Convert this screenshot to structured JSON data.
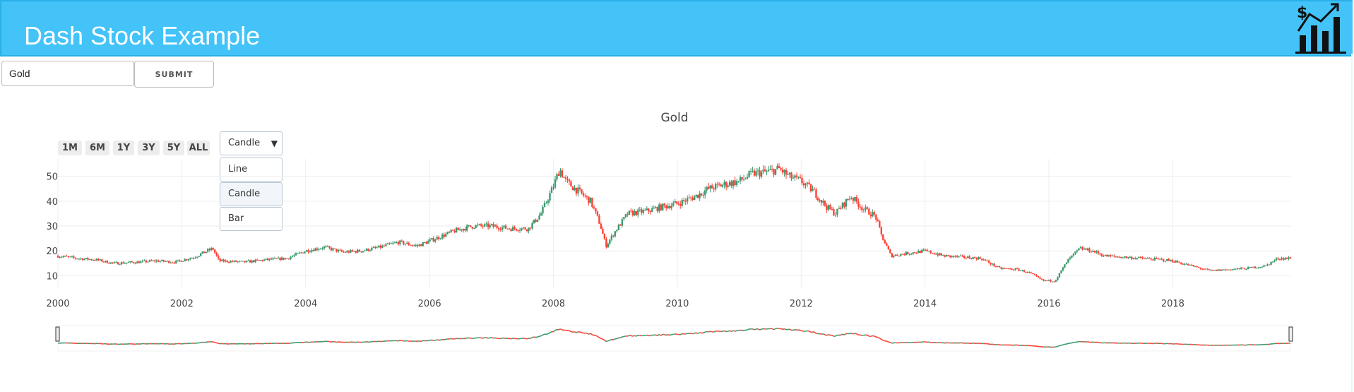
{
  "header": {
    "title": "Dash Stock Example",
    "logo_text": "$"
  },
  "controls": {
    "ticker_value": "Gold",
    "submit_label": "SUBMIT"
  },
  "range_buttons": [
    "1M",
    "6M",
    "1Y",
    "3Y",
    "5Y",
    "ALL"
  ],
  "chart_type_dropdown": {
    "selected": "Candle",
    "options": [
      "Line",
      "Candle",
      "Bar"
    ]
  },
  "colors": {
    "header_bg": "#43c3f8",
    "increasing": "#3d9970",
    "decreasing": "#ff4136",
    "grid": "#eeeeee"
  },
  "chart_data": {
    "type": "candlestick",
    "title": "Gold",
    "xlabel": "",
    "ylabel": "",
    "x_range": [
      2000.0,
      2019.9
    ],
    "ylim": [
      5,
      57
    ],
    "x_ticks": [
      "2000",
      "2002",
      "2004",
      "2006",
      "2008",
      "2010",
      "2012",
      "2014",
      "2016",
      "2018"
    ],
    "y_ticks": [
      10,
      20,
      30,
      40,
      50
    ],
    "grid": true,
    "rangeslider": true,
    "series": [
      {
        "name": "Gold",
        "approx_close_path": {
          "x": [
            2000.0,
            2000.3,
            2000.6,
            2000.9,
            2001.3,
            2001.6,
            2001.9,
            2002.2,
            2002.5,
            2002.6,
            2003.0,
            2003.4,
            2003.7,
            2004.0,
            2004.3,
            2004.6,
            2004.9,
            2005.2,
            2005.5,
            2005.8,
            2006.1,
            2006.4,
            2006.7,
            2007.0,
            2007.3,
            2007.6,
            2007.8,
            2008.0,
            2008.1,
            2008.2,
            2008.4,
            2008.6,
            2008.75,
            2008.85,
            2009.0,
            2009.2,
            2009.5,
            2009.8,
            2010.0,
            2010.3,
            2010.5,
            2010.8,
            2011.0,
            2011.2,
            2011.5,
            2011.65,
            2011.8,
            2012.0,
            2012.2,
            2012.4,
            2012.55,
            2012.8,
            2013.0,
            2013.2,
            2013.3,
            2013.45,
            2013.7,
            2014.0,
            2014.3,
            2014.6,
            2014.9,
            2015.2,
            2015.5,
            2015.7,
            2015.9,
            2016.1,
            2016.3,
            2016.5,
            2016.7,
            2016.9,
            2017.2,
            2017.5,
            2017.8,
            2018.0,
            2018.3,
            2018.6,
            2018.9,
            2019.2,
            2019.5,
            2019.7,
            2019.9
          ],
          "close": [
            18,
            17,
            16.5,
            15,
            15.5,
            16,
            15.5,
            17.5,
            21,
            16,
            15.5,
            16.5,
            17,
            20,
            21.5,
            19.5,
            20,
            21.5,
            23.5,
            22,
            25,
            28,
            30,
            30,
            29,
            29,
            35,
            46,
            53,
            48,
            44,
            40,
            31,
            22,
            28,
            35,
            36,
            38,
            39,
            42,
            45,
            47,
            48,
            51,
            52,
            53,
            50,
            48,
            44,
            38,
            35,
            42,
            37,
            34,
            26,
            18,
            19,
            20,
            18,
            17.5,
            17,
            13,
            12.5,
            11,
            8,
            8,
            16,
            21,
            20,
            18,
            17.5,
            17,
            16.5,
            16,
            14,
            12,
            12.5,
            13,
            14,
            17,
            17
          ]
        }
      }
    ]
  }
}
